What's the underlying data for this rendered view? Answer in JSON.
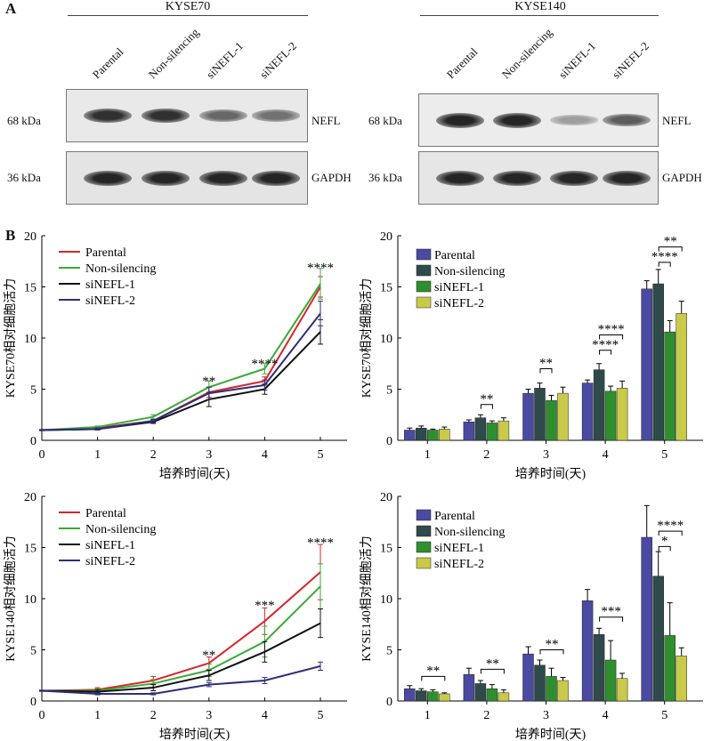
{
  "panelA": {
    "letter": "A",
    "cell_lines": [
      {
        "name": "KYSE70",
        "lanes": [
          "Parental",
          "Non-silencing",
          "siNEFL-1",
          "siNEFL-2"
        ]
      },
      {
        "name": "KYSE140",
        "lanes": [
          "Parental",
          "Non-silencing",
          "siNEFL-1",
          "siNEFL-2"
        ]
      }
    ],
    "rows": [
      {
        "kda": "68 kDa",
        "protein": "NEFL"
      },
      {
        "kda": "36 kDa",
        "protein": "GAPDH"
      }
    ],
    "band_intensity": {
      "KYSE70": {
        "NEFL": [
          0.85,
          0.85,
          0.6,
          0.55
        ],
        "GAPDH": [
          0.9,
          0.9,
          0.9,
          0.9
        ]
      },
      "KYSE140": {
        "NEFL": [
          0.9,
          0.9,
          0.35,
          0.65
        ],
        "GAPDH": [
          0.9,
          0.9,
          0.9,
          0.9
        ]
      }
    }
  },
  "panelB": {
    "letter": "B"
  },
  "colors": {
    "Parental_line": "#d6262b",
    "Non-silencing_line": "#3aaa35",
    "siNEFL-1_line": "#111111",
    "siNEFL-2_line": "#2e2e7a",
    "Parental_bar": "#4a4aa0",
    "Non-silencing_bar": "#2f4a4a",
    "siNEFL-1_bar": "#2f8f2f",
    "siNEFL-2_bar": "#c9c94a"
  },
  "chart_data": [
    {
      "type": "line",
      "ylabel": "KYSE70相对细胞活力",
      "xlabel": "培养时间(天)",
      "xlim": [
        0,
        5
      ],
      "ylim": [
        0,
        20
      ],
      "xticks": [
        "0",
        "1",
        "2",
        "3",
        "4",
        "5"
      ],
      "yticks": [
        "0",
        "5",
        "10",
        "15",
        "20"
      ],
      "x": [
        0,
        1,
        2,
        3,
        4,
        5
      ],
      "series": [
        {
          "name": "Parental",
          "values": [
            1.0,
            1.2,
            1.9,
            4.7,
            5.8,
            15.0
          ],
          "errors": [
            0.05,
            0.1,
            0.15,
            0.5,
            0.4,
            1.0
          ]
        },
        {
          "name": "Non-silencing",
          "values": [
            1.0,
            1.3,
            2.3,
            5.2,
            7.0,
            15.3
          ],
          "errors": [
            0.05,
            0.1,
            0.2,
            0.6,
            0.5,
            1.5
          ]
        },
        {
          "name": "siNEFL-1",
          "values": [
            1.0,
            1.1,
            1.8,
            4.0,
            5.0,
            10.6
          ],
          "errors": [
            0.05,
            0.1,
            0.15,
            0.7,
            0.5,
            1.2
          ]
        },
        {
          "name": "siNEFL-2",
          "values": [
            1.0,
            1.1,
            1.9,
            4.6,
            5.4,
            12.4
          ],
          "errors": [
            0.05,
            0.1,
            0.15,
            0.6,
            0.5,
            1.2
          ]
        }
      ],
      "annotations": [
        {
          "x": 3,
          "y": 5.9,
          "text": "**"
        },
        {
          "x": 4,
          "y": 7.6,
          "text": "****"
        },
        {
          "x": 5,
          "y": 17.0,
          "text": "****"
        }
      ],
      "legend": "top-left"
    },
    {
      "type": "bar",
      "ylabel": "KYSE70相对细胞活力",
      "xlabel": "培养时间(天)",
      "ylim": [
        0,
        20
      ],
      "yticks": [
        "0",
        "5",
        "10",
        "15",
        "20"
      ],
      "categories": [
        "1",
        "2",
        "3",
        "4",
        "5"
      ],
      "series": [
        {
          "name": "Parental",
          "values": [
            1.0,
            1.8,
            4.6,
            5.6,
            14.8
          ],
          "errors": [
            0.2,
            0.2,
            0.4,
            0.3,
            0.8
          ]
        },
        {
          "name": "Non-silencing",
          "values": [
            1.2,
            2.2,
            5.1,
            6.9,
            15.3
          ],
          "errors": [
            0.2,
            0.3,
            0.5,
            0.6,
            1.4
          ]
        },
        {
          "name": "siNEFL-1",
          "values": [
            1.0,
            1.7,
            3.9,
            4.8,
            10.6
          ],
          "errors": [
            0.1,
            0.2,
            0.5,
            0.5,
            1.1
          ]
        },
        {
          "name": "siNEFL-2",
          "values": [
            1.1,
            1.9,
            4.6,
            5.1,
            12.4
          ],
          "errors": [
            0.2,
            0.3,
            0.6,
            0.7,
            1.2
          ]
        }
      ],
      "brackets": [
        {
          "cat": 1,
          "from": 1,
          "to": 2,
          "y": 3.5,
          "text": "**"
        },
        {
          "cat": 2,
          "from": 1,
          "to": 2,
          "y": 7.0,
          "text": "**"
        },
        {
          "cat": 3,
          "from": 1,
          "to": 2,
          "y": 8.8,
          "text": "****"
        },
        {
          "cat": 3,
          "from": 1,
          "to": 3,
          "y": 10.3,
          "text": "****"
        },
        {
          "cat": 4,
          "from": 1,
          "to": 2,
          "y": 17.4,
          "text": "****"
        },
        {
          "cat": 4,
          "from": 1,
          "to": 3,
          "y": 18.9,
          "text": "**"
        }
      ],
      "legend": "top-left"
    },
    {
      "type": "line",
      "ylabel": "KYSE140相对细胞活力",
      "xlabel": "培养时间(天)",
      "xlim": [
        0,
        5
      ],
      "ylim": [
        0,
        20
      ],
      "xticks": [
        "0",
        "1",
        "2",
        "3",
        "4",
        "5"
      ],
      "yticks": [
        "0",
        "5",
        "10",
        "15",
        "20"
      ],
      "x": [
        0,
        1,
        2,
        3,
        4,
        5
      ],
      "series": [
        {
          "name": "Parental",
          "values": [
            1.0,
            1.1,
            2.0,
            3.7,
            7.8,
            12.6
          ],
          "errors": [
            0.05,
            0.2,
            0.4,
            0.6,
            1.3,
            2.7
          ]
        },
        {
          "name": "Non-silencing",
          "values": [
            1.0,
            1.0,
            1.7,
            3.0,
            5.8,
            11.2
          ],
          "errors": [
            0.05,
            0.2,
            0.4,
            0.6,
            1.5,
            2.2
          ]
        },
        {
          "name": "siNEFL-1",
          "values": [
            1.0,
            0.9,
            1.3,
            2.5,
            4.8,
            7.6
          ],
          "errors": [
            0.05,
            0.2,
            0.3,
            0.5,
            1.0,
            1.4
          ]
        },
        {
          "name": "siNEFL-2",
          "values": [
            1.0,
            0.7,
            0.7,
            1.6,
            2.0,
            3.4
          ],
          "errors": [
            0.05,
            0.1,
            0.1,
            0.2,
            0.3,
            0.4
          ]
        }
      ],
      "annotations": [
        {
          "x": 3,
          "y": 4.6,
          "text": "**"
        },
        {
          "x": 4,
          "y": 9.5,
          "text": "***"
        },
        {
          "x": 5,
          "y": 15.6,
          "text": "****"
        }
      ],
      "legend": "top-left"
    },
    {
      "type": "bar",
      "ylabel": "KYSE140相对细胞活力",
      "xlabel": "培养时间(天)",
      "ylim": [
        0,
        20
      ],
      "yticks": [
        "0",
        "5",
        "10",
        "15",
        "20"
      ],
      "categories": [
        "1",
        "2",
        "3",
        "4",
        "5"
      ],
      "series": [
        {
          "name": "Parental",
          "values": [
            1.2,
            2.6,
            4.6,
            9.8,
            16.0
          ],
          "errors": [
            0.3,
            0.6,
            0.7,
            1.1,
            3.1
          ]
        },
        {
          "name": "Non-silencing",
          "values": [
            1.0,
            1.7,
            3.5,
            6.5,
            12.2
          ],
          "errors": [
            0.2,
            0.3,
            0.5,
            0.6,
            2.4
          ]
        },
        {
          "name": "siNEFL-1",
          "values": [
            0.9,
            1.2,
            2.4,
            4.0,
            6.4
          ],
          "errors": [
            0.2,
            0.4,
            0.8,
            1.9,
            3.2
          ]
        },
        {
          "name": "siNEFL-2",
          "values": [
            0.7,
            0.8,
            2.0,
            2.2,
            4.4
          ],
          "errors": [
            0.1,
            0.3,
            0.3,
            0.5,
            0.8
          ]
        }
      ],
      "brackets": [
        {
          "cat": 0,
          "from": 1,
          "to": 3,
          "y": 2.4,
          "text": "**"
        },
        {
          "cat": 1,
          "from": 1,
          "to": 3,
          "y": 3.1,
          "text": "**"
        },
        {
          "cat": 2,
          "from": 1,
          "to": 3,
          "y": 5.0,
          "text": "**"
        },
        {
          "cat": 3,
          "from": 1,
          "to": 3,
          "y": 8.2,
          "text": "***"
        },
        {
          "cat": 4,
          "from": 1,
          "to": 2,
          "y": 15.1,
          "text": "*"
        },
        {
          "cat": 4,
          "from": 1,
          "to": 3,
          "y": 16.6,
          "text": "****"
        }
      ],
      "legend": "top-left"
    }
  ]
}
